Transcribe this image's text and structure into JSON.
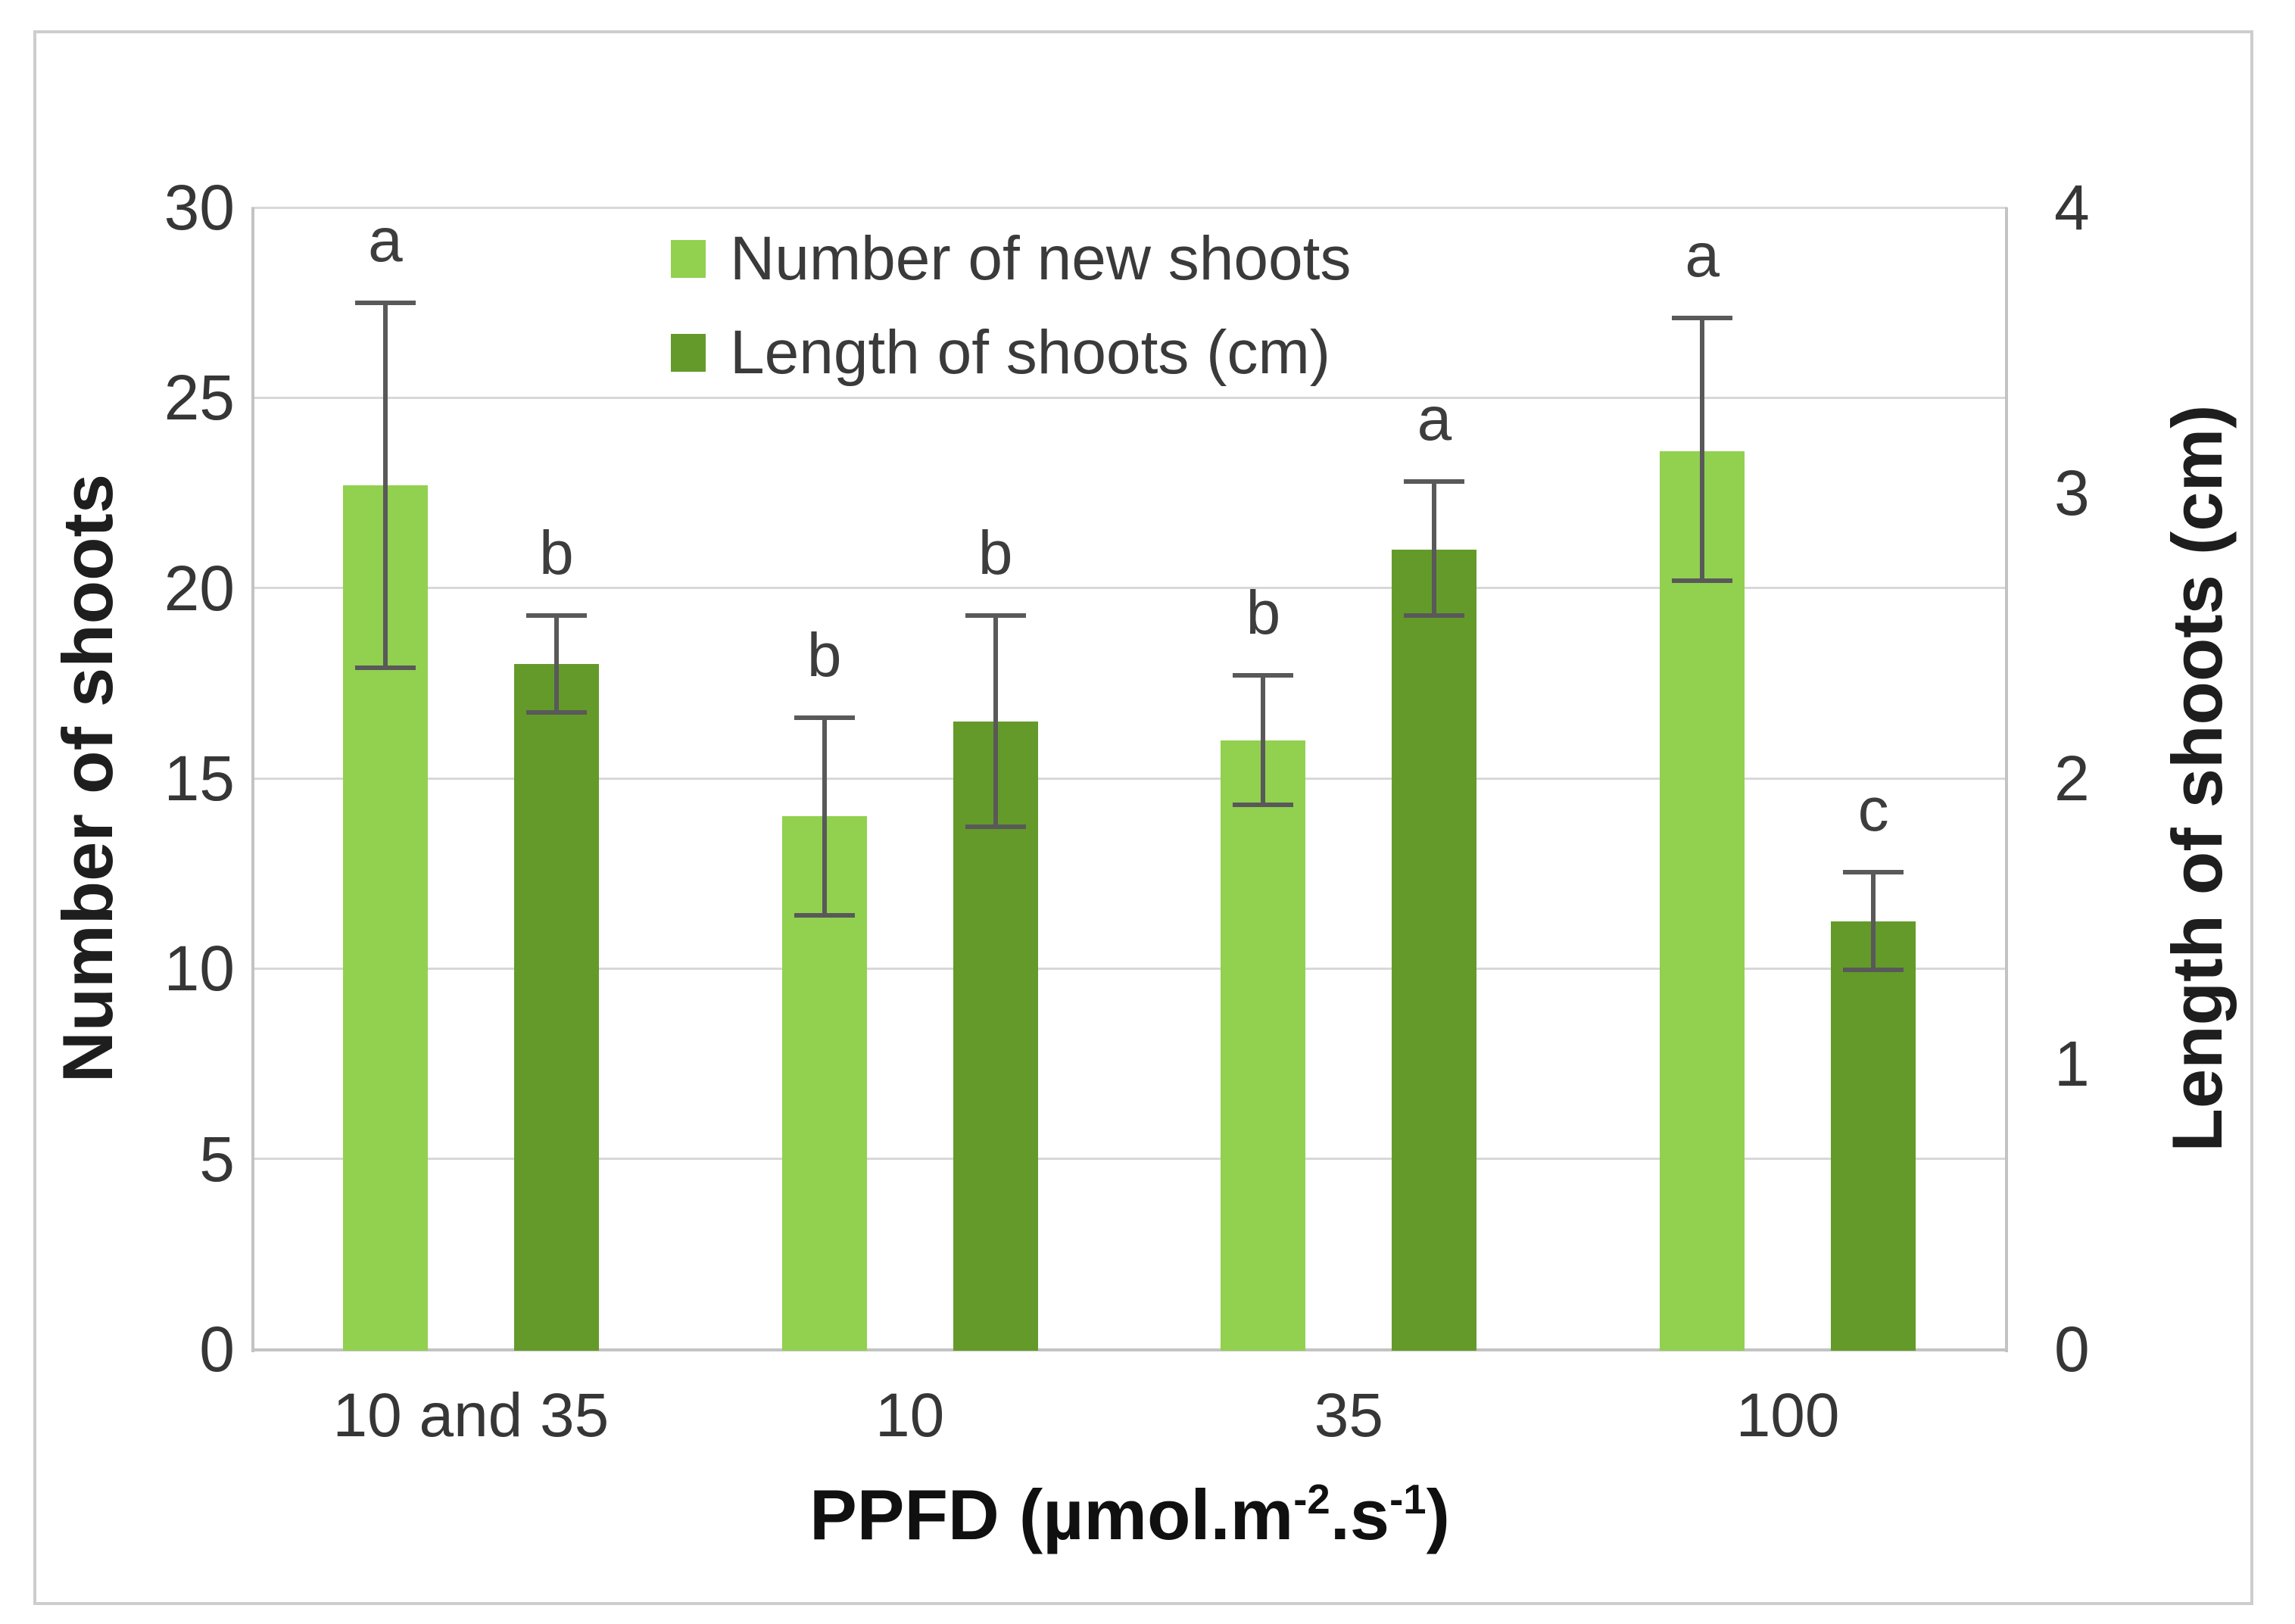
{
  "figure": {
    "background": "#ffffff",
    "border_color": "#cdcdcd",
    "gridline_color": "#d8d8d8",
    "axis_line_color": "#c3c3c3"
  },
  "chart_data": {
    "type": "bar",
    "title": "",
    "categories": [
      "10 and 35",
      "10",
      "35",
      "100"
    ],
    "x_axis": {
      "label": "PPFD (µmol.m⁻².s⁻¹)",
      "label_parts": [
        {
          "text": "PPFD (µmol.m"
        },
        {
          "text": "-2",
          "sup": true
        },
        {
          "text": ".s"
        },
        {
          "text": "-1",
          "sup": true
        },
        {
          "text": ")"
        }
      ]
    },
    "left_axis": {
      "label": "Number of shoots",
      "min": 0,
      "max": 30,
      "ticks": [
        0,
        5,
        10,
        15,
        20,
        25,
        30
      ]
    },
    "right_axis": {
      "label": "Length of shoots (cm)",
      "min": 0,
      "max": 4,
      "ticks": [
        0,
        1,
        2,
        3,
        4
      ]
    },
    "grid": true,
    "legend_position": "top-center-inside",
    "error_bar_color": "#595959",
    "sig_letter_color": "#3d3d3d",
    "series": [
      {
        "name": "Number of new shoots",
        "axis": "left",
        "color": "#92d050",
        "values": [
          22.7,
          14.0,
          16.0,
          23.6
        ],
        "error_plus": [
          4.8,
          2.6,
          1.7,
          3.5
        ],
        "error_minus": [
          4.8,
          2.6,
          1.7,
          3.4
        ],
        "sig_letters": [
          "a",
          "b",
          "b",
          "a"
        ]
      },
      {
        "name": "Length of shoots (cm)",
        "axis": "right",
        "color": "#649a2a",
        "values": [
          2.4,
          2.2,
          2.8,
          1.5
        ],
        "error_plus": [
          0.17,
          0.37,
          0.24,
          0.17
        ],
        "error_minus": [
          0.17,
          0.37,
          0.23,
          0.17
        ],
        "sig_letters": [
          "b",
          "b",
          "a",
          "c"
        ]
      }
    ]
  }
}
